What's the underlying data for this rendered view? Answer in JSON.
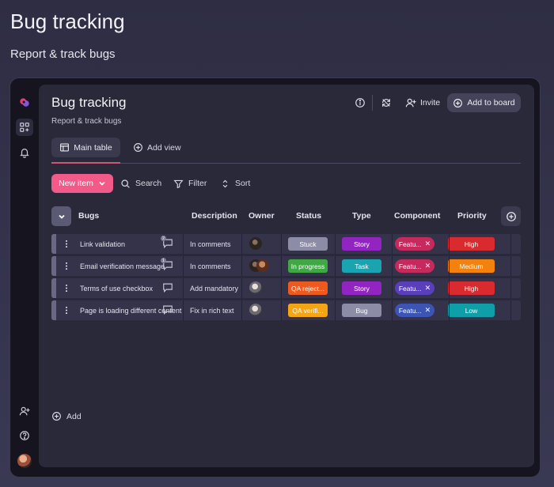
{
  "page": {
    "title": "Bug tracking",
    "subtitle": "Report & track bugs"
  },
  "board": {
    "title": "Bug tracking",
    "subtitle": "Report & track bugs",
    "invite_label": "Invite",
    "add_to_board_label": "Add to board"
  },
  "tabs": {
    "main_table": "Main table",
    "add_view": "Add view"
  },
  "toolbar": {
    "new_item": "New item",
    "search": "Search",
    "filter": "Filter",
    "sort": "Sort"
  },
  "columns": [
    "Bugs",
    "Description",
    "Owner",
    "Status",
    "Type",
    "Component",
    "Priority"
  ],
  "rows": [
    {
      "name": "Link validation",
      "comments": "2",
      "description": "In comments",
      "owners": [
        "a"
      ],
      "status": "Stuck",
      "status_color": "#8d8ca6",
      "type": "Story",
      "type_color": "#9225c2",
      "component": "Featu...",
      "component_color": "#c62a5c",
      "priority": "High",
      "priority_color": "#d92b2f"
    },
    {
      "name": "Email verification message",
      "comments": "1",
      "description": "In comments",
      "owners": [
        "a",
        "c"
      ],
      "status": "In progress",
      "status_color": "#3fa845",
      "type": "Task",
      "type_color": "#1aa3b0",
      "component": "Featu...",
      "component_color": "#c62a5c",
      "priority": "Medium",
      "priority_color": "#f2820d"
    },
    {
      "name": "Terms of use checkbox",
      "comments": "",
      "description": "Add mandatory",
      "owners": [
        "b"
      ],
      "status": "QA reject...",
      "status_color": "#ee5a1e",
      "type": "Story",
      "type_color": "#9225c2",
      "component": "Featu...",
      "component_color": "#5a3fbd",
      "priority": "High",
      "priority_color": "#d92b2f"
    },
    {
      "name": "Page is loading different content",
      "comments": "",
      "description": "Fix in rich text",
      "owners": [
        "b"
      ],
      "status": "QA verifi...",
      "status_color": "#f5a514",
      "type": "Bug",
      "type_color": "#8d8ca6",
      "component": "Featu...",
      "component_color": "#3c55b5",
      "priority": "Low",
      "priority_color": "#0f9fa8"
    }
  ],
  "add_label": "Add",
  "icons": [
    "logo-icon",
    "apps-icon",
    "bell-icon",
    "add-user-icon",
    "help-icon",
    "info-icon",
    "sync-icon",
    "table-icon",
    "plus-circle-icon",
    "search-icon",
    "filter-icon",
    "sort-icon",
    "chevron-down-icon",
    "more-vertical-icon",
    "comment-icon"
  ]
}
